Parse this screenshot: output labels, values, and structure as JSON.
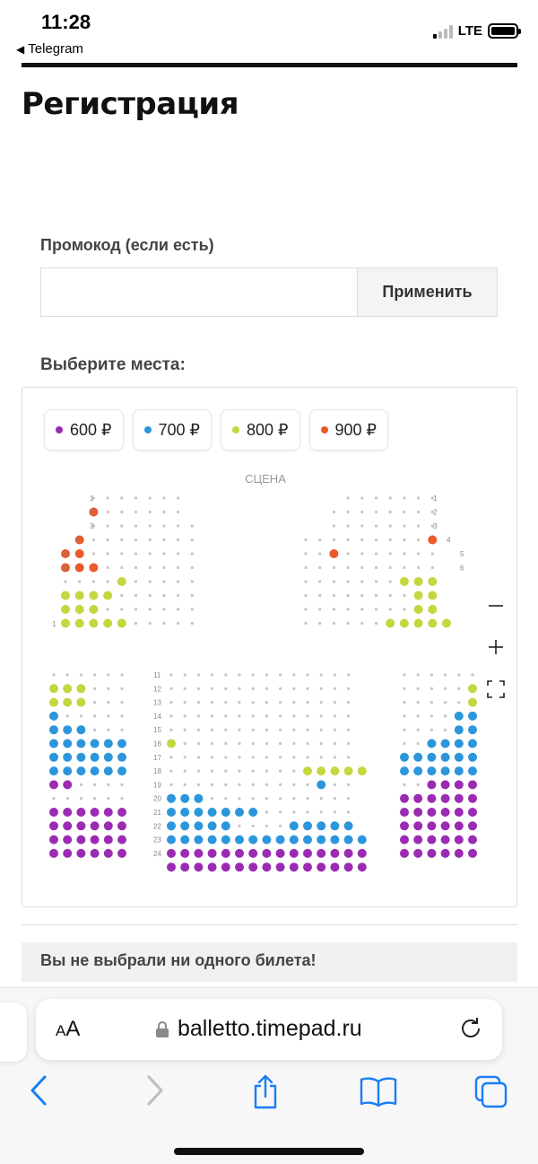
{
  "status_bar": {
    "time": "11:28",
    "back_app": "Telegram",
    "network": "LTE"
  },
  "page": {
    "title": "Регистрация"
  },
  "promo": {
    "label": "Промокод (если есть)",
    "value": "",
    "placeholder": "",
    "apply_label": "Применить"
  },
  "seats": {
    "label": "Выберите места:",
    "stage_label": "СЦЕНА",
    "legend": [
      {
        "price": "600 ₽",
        "color": "#9b2bb3"
      },
      {
        "price": "700 ₽",
        "color": "#2c96dc"
      },
      {
        "price": "800 ₽",
        "color": "#c5d63f"
      },
      {
        "price": "900 ₽",
        "color": "#ea5a2a"
      }
    ],
    "zoom_controls": [
      "minus-icon",
      "plus-icon",
      "fullscreen-icon"
    ]
  },
  "cart": {
    "empty_message": "Вы не выбрали ни одного билета!"
  },
  "browser": {
    "text_size_label": "AA",
    "url": "balletto.timepad.ru",
    "toolbar": [
      "back-icon",
      "forward-icon",
      "share-icon",
      "bookmarks-icon",
      "tabs-icon"
    ]
  },
  "colors": {
    "accent_blue": "#1a7ef5",
    "free_seat": "#c4c4c4"
  }
}
